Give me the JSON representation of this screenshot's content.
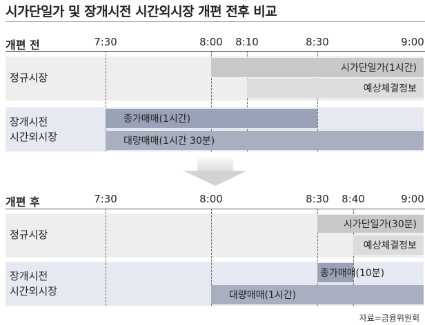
{
  "title": "시가단일가 및 장개시전 시간외시장 개편 전후 비교",
  "before": {
    "label": "개편 전",
    "times": [
      "7:30",
      "8:00",
      "8:10",
      "8:30",
      "9:00"
    ],
    "rows": [
      {
        "label": "정규시장",
        "bars": [
          "시가단일가(1시간)",
          "예상체결정보"
        ]
      },
      {
        "label": "장개시전\n시간외시장",
        "bars": [
          "종가매매(1시간)",
          "대량매매(1시간 30분)"
        ]
      }
    ]
  },
  "after": {
    "label": "개편 후",
    "times": [
      "7:30",
      "8:00",
      "8:30",
      "8:40",
      "9:00"
    ],
    "rows": [
      {
        "label": "정규시장",
        "bars": [
          "시가단일가(30분)",
          "예상체결정보"
        ]
      },
      {
        "label": "장개시전\n시간외시장",
        "bars": [
          "종가매매(10분)",
          "대량매매(1시간)"
        ]
      }
    ]
  },
  "source": "자료=금융위원회"
}
